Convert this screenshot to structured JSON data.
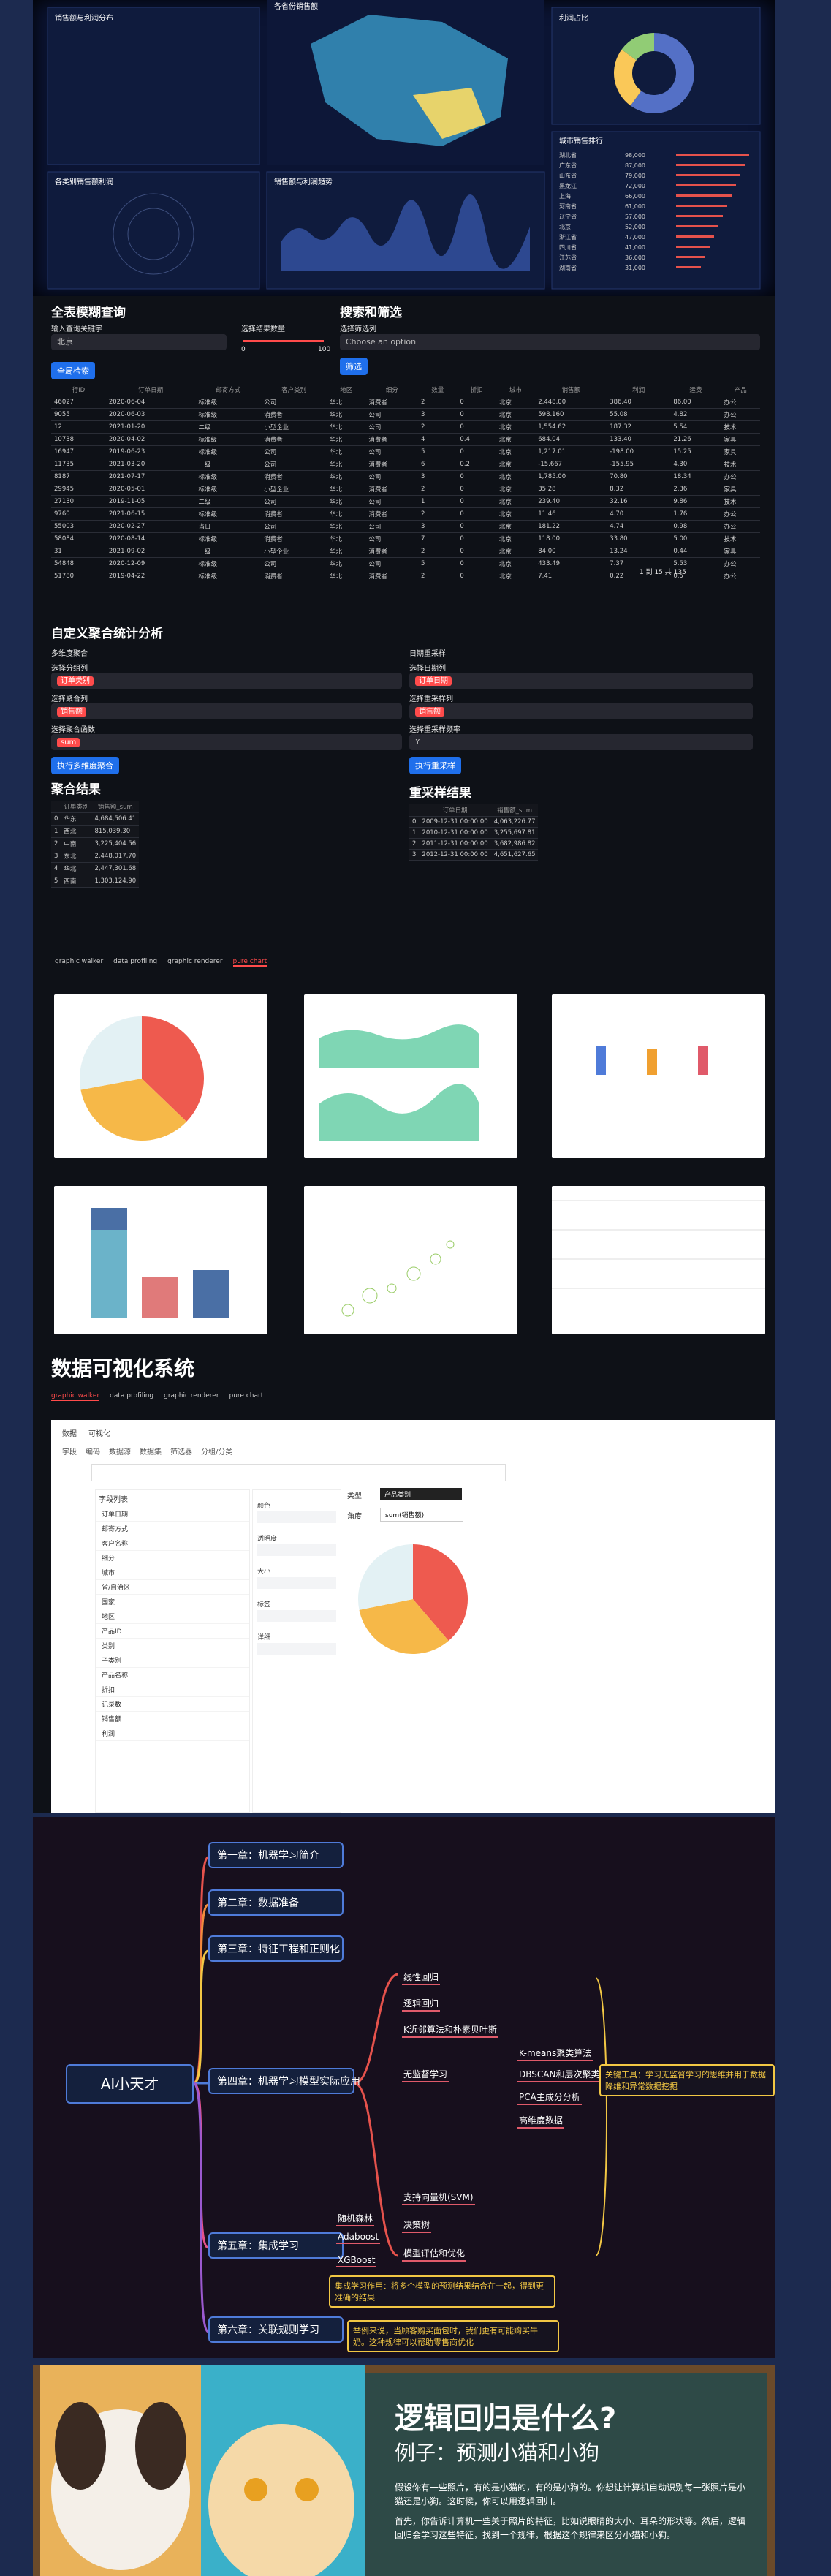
{
  "dashboard": {
    "panels": [
      "销售额与利润分布",
      "各省份销售额",
      "利润占比",
      "各类别销售额利润",
      "销售额与利润趋势",
      "城市销售排行"
    ],
    "donut": {
      "values": [
        60,
        25,
        15
      ],
      "colors": [
        "#5470c6",
        "#fac858",
        "#91cc75"
      ]
    },
    "rank_rows": [
      [
        "湖北省",
        "98,000"
      ],
      [
        "广东省",
        "87,000"
      ],
      [
        "山东省",
        "79,000"
      ],
      [
        "黑龙江",
        "72,000"
      ],
      [
        "上海",
        "66,000"
      ],
      [
        "河南省",
        "61,000"
      ],
      [
        "辽宁省",
        "57,000"
      ],
      [
        "北京",
        "52,000"
      ],
      [
        "浙江省",
        "47,000"
      ],
      [
        "四川省",
        "41,000"
      ],
      [
        "江苏省",
        "36,000"
      ],
      [
        "湖南省",
        "31,000"
      ]
    ]
  },
  "query": {
    "title": "全表模糊查询",
    "input_label": "输入查询关键字",
    "input_value": "北京",
    "slider_label": "选择结果数量",
    "slider_min": "0",
    "slider_max": "100",
    "button": "全局检索",
    "filter_title": "搜索和筛选",
    "filter_label": "选择筛选列",
    "filter_placeholder": "Choose an option",
    "filter_button": "筛选",
    "columns": [
      "行ID",
      "订单日期",
      "邮寄方式",
      "客户类别",
      "地区",
      "细分",
      "数量",
      "折扣",
      "城市",
      "销售额",
      "利润",
      "运费",
      "产品"
    ],
    "rows": [
      [
        "46027",
        "2020-06-04",
        "标准级",
        "公司",
        "华北",
        "消费者",
        "2",
        "0",
        "北京",
        "2,448.00",
        "386.40",
        "86.00",
        "办公"
      ],
      [
        "9055",
        "2020-06-03",
        "标准级",
        "消费者",
        "华北",
        "公司",
        "3",
        "0",
        "北京",
        "598.160",
        "55.08",
        "4.82",
        "办公"
      ],
      [
        "12",
        "2021-01-20",
        "二级",
        "小型企业",
        "华北",
        "公司",
        "2",
        "0",
        "北京",
        "1,554.62",
        "187.32",
        "5.54",
        "技术"
      ],
      [
        "10738",
        "2020-04-02",
        "标准级",
        "消费者",
        "华北",
        "消费者",
        "4",
        "0.4",
        "北京",
        "684.04",
        "133.40",
        "21.26",
        "家具"
      ],
      [
        "16947",
        "2019-06-23",
        "标准级",
        "公司",
        "华北",
        "公司",
        "5",
        "0",
        "北京",
        "1,217.01",
        "-198.00",
        "15.25",
        "家具"
      ],
      [
        "11735",
        "2021-03-20",
        "一级",
        "公司",
        "华北",
        "消费者",
        "6",
        "0.2",
        "北京",
        "-15.667",
        "-155.95",
        "4.30",
        "技术"
      ],
      [
        "8187",
        "2021-07-17",
        "标准级",
        "消费者",
        "华北",
        "公司",
        "3",
        "0",
        "北京",
        "1,785.00",
        "70.80",
        "18.34",
        "办公"
      ],
      [
        "29945",
        "2020-05-01",
        "标准级",
        "小型企业",
        "华北",
        "消费者",
        "2",
        "0",
        "北京",
        "35.28",
        "8.32",
        "2.36",
        "家具"
      ],
      [
        "27130",
        "2019-11-05",
        "二级",
        "公司",
        "华北",
        "公司",
        "1",
        "0",
        "北京",
        "239.40",
        "32.16",
        "9.86",
        "技术"
      ],
      [
        "9760",
        "2021-06-15",
        "标准级",
        "消费者",
        "华北",
        "消费者",
        "2",
        "0",
        "北京",
        "11.46",
        "4.70",
        "1.76",
        "办公"
      ],
      [
        "55003",
        "2020-02-27",
        "当日",
        "公司",
        "华北",
        "公司",
        "3",
        "0",
        "北京",
        "181.22",
        "4.74",
        "0.98",
        "办公"
      ],
      [
        "58084",
        "2020-08-14",
        "标准级",
        "消费者",
        "华北",
        "公司",
        "7",
        "0",
        "北京",
        "118.00",
        "33.80",
        "5.00",
        "技术"
      ],
      [
        "31",
        "2021-09-02",
        "一级",
        "小型企业",
        "华北",
        "消费者",
        "2",
        "0",
        "北京",
        "84.00",
        "13.24",
        "0.44",
        "家具"
      ],
      [
        "54848",
        "2020-12-09",
        "标准级",
        "公司",
        "华北",
        "公司",
        "5",
        "0",
        "北京",
        "433.49",
        "7.37",
        "5.53",
        "办公"
      ],
      [
        "51780",
        "2019-04-22",
        "标准级",
        "消费者",
        "华北",
        "消费者",
        "2",
        "0",
        "北京",
        "7.41",
        "0.22",
        "0.5",
        "办公"
      ]
    ],
    "pager": "1 到 15 共 135"
  },
  "agg": {
    "title": "自定义聚合统计分析",
    "multi": "多维度聚合",
    "group_label": "选择分组列",
    "group_tag": "订单类别",
    "col_label": "选择聚合列",
    "col_tag": "销售额",
    "fn_label": "选择聚合函数",
    "fn_tag": "sum",
    "button": "执行多维度聚合",
    "result_title": "聚合结果",
    "result_cols": [
      "订单类别",
      "销售额_sum"
    ],
    "result_rows": [
      [
        "华东",
        "4,684,506.41"
      ],
      [
        "西北",
        "815,039.30"
      ],
      [
        "中南",
        "3,225,404.56"
      ],
      [
        "东北",
        "2,448,017.70"
      ],
      [
        "华北",
        "2,447,301.68"
      ],
      [
        "西南",
        "1,303,124.90"
      ]
    ],
    "resample": "日期重采样",
    "date_label": "选择日期列",
    "date_tag": "订单日期",
    "rcol_label": "选择重采样列",
    "rcol_tag": "销售额",
    "freq_label": "选择重采样频率",
    "freq_value": "Y",
    "rbutton": "执行重采样",
    "rresult_title": "重采样结果",
    "rresult_cols": [
      "订单日期",
      "销售额_sum"
    ],
    "rresult_rows": [
      [
        "2009-12-31 00:00:00",
        "4,063,226.77"
      ],
      [
        "2010-12-31 00:00:00",
        "3,255,697.81"
      ],
      [
        "2011-12-31 00:00:00",
        "3,682,986.82"
      ],
      [
        "2012-12-31 00:00:00",
        "4,651,627.65"
      ]
    ]
  },
  "tabs": [
    "graphic walker",
    "data profiling",
    "graphic renderer",
    "pure chart"
  ],
  "pie": {
    "values": [
      4800000,
      4500000,
      3600000
    ],
    "colors": [
      "#ee5a4f",
      "#f6b848",
      "#e3f1f4"
    ]
  },
  "pyg": {
    "title": "数据可视化系统",
    "toolbar": [
      "数据",
      "可视化"
    ],
    "subtabs": [
      "字段",
      "编码",
      "数据源",
      "数据集",
      "筛选器",
      "分组/分类"
    ],
    "fields_title": "字段列表",
    "fields": [
      "订单日期",
      "邮寄方式",
      "客户名称",
      "细分",
      "城市",
      "省/自治区",
      "国家",
      "地区",
      "产品ID",
      "类别",
      "子类别",
      "产品名称",
      "折扣",
      "记录数",
      "销售额",
      "利润"
    ],
    "shelves": [
      "颜色",
      "透明度",
      "大小",
      "标签",
      "详细"
    ],
    "row_label": "类型",
    "col_label": "角度",
    "enc_tag": "产品类别",
    "enc_value": "sum(销售额)",
    "bars": {
      "values": [
        5500000,
        4700000,
        4000000
      ],
      "colors": [
        "#ee5a4f",
        "#f6b848",
        "#e3f1f4"
      ]
    }
  },
  "mindmap": {
    "root": "AI小天才",
    "chapters": [
      "第一章：机器学习简介",
      "第二章：数据准备",
      "第三章：特征工程和正则化",
      "第四章：机器学习模型实际应用",
      "第五章：集成学习",
      "第六章：关联规则学习"
    ],
    "ch4": [
      "线性回归",
      "逻辑回归",
      "K近邻算法和朴素贝叶斯",
      "无监督学习",
      "支持向量机(SVM)",
      "决策树",
      "模型评估和优化"
    ],
    "unsup": [
      "K-means聚类算法",
      "DBSCAN和层次聚类算法",
      "PCA主成分分析",
      "高维度数据"
    ],
    "ch4_note": "关键工具：学习无监督学习的思维并用于数据降维和异常数据挖掘",
    "ch5": [
      "随机森林",
      "Adaboost",
      "XGBoost"
    ],
    "ch5_note": "集成学习作用：将多个模型的预测结果结合在一起，得到更准确的结果",
    "ch6_note": "举例来说，当顾客购买面包时，我们更有可能购买牛奶。这种规律可以帮助零售商优化"
  },
  "slide": {
    "title": "逻辑回归是什么?",
    "subtitle": "例子：预测小猫和小狗",
    "bullets": [
      "假设你有一些照片，有的是小猫的，有的是小狗的。你想让计算机自动识别每一张照片是小猫还是小狗。这时候，你可以用逻辑回归。",
      "首先，你告诉计算机一些关于照片的特征，比如说眼睛的大小、耳朵的形状等。然后，逻辑回归会学习这些特征，找到一个规律，根据这个规律来区分小猫和小狗。"
    ]
  }
}
